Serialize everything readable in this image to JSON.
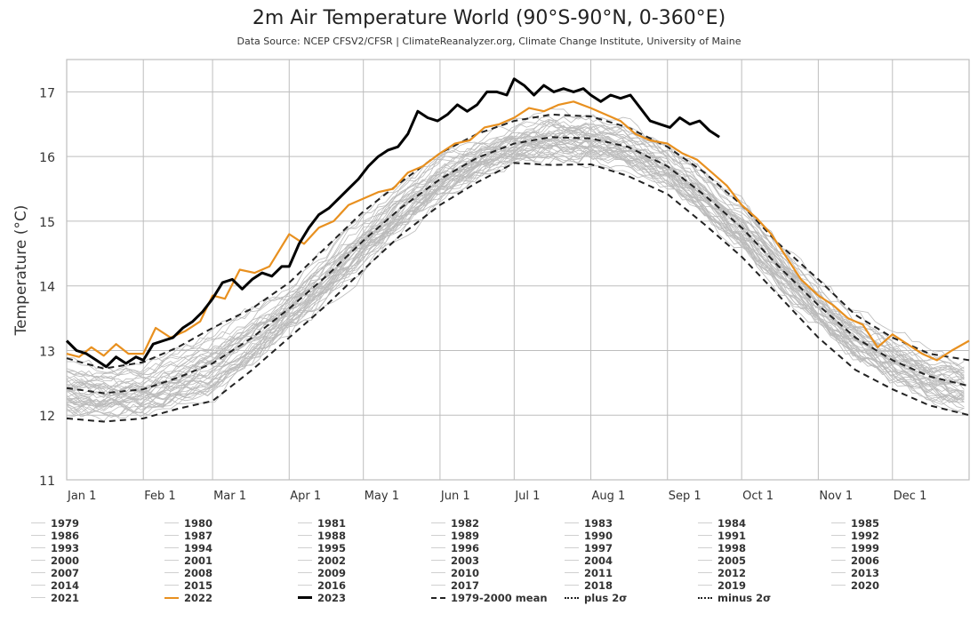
{
  "chart_data": {
    "type": "line",
    "title": "2m Air Temperature World (90°S-90°N, 0-360°E)",
    "subtitle": "Data Source: NCEP CFSV2/CFSR | ClimateReanalyzer.org, Climate Change Institute, University of Maine",
    "xlabel": "",
    "ylabel": "Temperature (°C)",
    "ylim": [
      11,
      17.5
    ],
    "xlim_days": [
      0,
      365
    ],
    "yticks": [
      11,
      12,
      13,
      14,
      15,
      16,
      17
    ],
    "grid": true,
    "legend_position": "bottom",
    "month_ticks": [
      {
        "label": "Jan 1",
        "day": 0
      },
      {
        "label": "Feb 1",
        "day": 31
      },
      {
        "label": "Mar 1",
        "day": 59
      },
      {
        "label": "Apr 1",
        "day": 90
      },
      {
        "label": "May 1",
        "day": 120
      },
      {
        "label": "Jun 1",
        "day": 151
      },
      {
        "label": "Jul 1",
        "day": 181
      },
      {
        "label": "Aug 1",
        "day": 212
      },
      {
        "label": "Sep 1",
        "day": 243
      },
      {
        "label": "Oct 1",
        "day": 273
      },
      {
        "label": "Nov 1",
        "day": 304
      },
      {
        "label": "Dec 1",
        "day": 334
      }
    ],
    "series": [
      {
        "name": "1979-2000 mean",
        "style": "dashed",
        "color": "#222222",
        "x": [
          0,
          15,
          31,
          45,
          59,
          75,
          90,
          105,
          120,
          135,
          151,
          166,
          181,
          196,
          212,
          227,
          243,
          258,
          273,
          288,
          304,
          319,
          334,
          349,
          365
        ],
        "y": [
          12.42,
          12.34,
          12.4,
          12.58,
          12.8,
          13.2,
          13.65,
          14.15,
          14.7,
          15.2,
          15.65,
          15.98,
          16.2,
          16.3,
          16.28,
          16.15,
          15.85,
          15.4,
          14.9,
          14.3,
          13.7,
          13.2,
          12.85,
          12.6,
          12.45
        ]
      },
      {
        "name": "plus 2σ",
        "style": "dashed",
        "color": "#222222",
        "x": [
          0,
          15,
          31,
          45,
          59,
          75,
          90,
          105,
          120,
          135,
          151,
          166,
          181,
          196,
          212,
          227,
          243,
          258,
          273,
          288,
          304,
          319,
          334,
          349,
          365
        ],
        "y": [
          12.88,
          12.72,
          12.82,
          13.05,
          13.35,
          13.65,
          14.05,
          14.6,
          15.15,
          15.6,
          16.05,
          16.35,
          16.55,
          16.65,
          16.62,
          16.45,
          16.15,
          15.75,
          15.25,
          14.65,
          14.1,
          13.55,
          13.2,
          12.95,
          12.85
        ]
      },
      {
        "name": "minus 2σ",
        "style": "dashed",
        "color": "#222222",
        "x": [
          0,
          15,
          31,
          45,
          59,
          75,
          90,
          105,
          120,
          135,
          151,
          166,
          181,
          196,
          212,
          227,
          243,
          258,
          273,
          288,
          304,
          319,
          334,
          349,
          365
        ],
        "y": [
          11.95,
          11.9,
          11.95,
          12.1,
          12.22,
          12.7,
          13.2,
          13.7,
          14.25,
          14.78,
          15.25,
          15.6,
          15.9,
          15.87,
          15.88,
          15.7,
          15.42,
          14.95,
          14.45,
          13.85,
          13.2,
          12.7,
          12.4,
          12.15,
          12.0
        ]
      },
      {
        "name": "2022",
        "style": "solid",
        "color": "#e8901f",
        "x": [
          0,
          5,
          10,
          15,
          20,
          25,
          31,
          36,
          42,
          48,
          54,
          59,
          64,
          70,
          76,
          82,
          90,
          96,
          102,
          108,
          114,
          120,
          126,
          132,
          138,
          144,
          151,
          157,
          163,
          169,
          175,
          181,
          187,
          193,
          199,
          205,
          212,
          218,
          224,
          230,
          236,
          243,
          249,
          255,
          261,
          267,
          273,
          279,
          285,
          291,
          297,
          304,
          310,
          316,
          322,
          328,
          334,
          340,
          346,
          352,
          358,
          365
        ],
        "y": [
          12.95,
          12.9,
          13.05,
          12.92,
          13.1,
          12.95,
          12.95,
          13.35,
          13.2,
          13.3,
          13.45,
          13.85,
          13.8,
          14.25,
          14.2,
          14.3,
          14.8,
          14.65,
          14.9,
          15.0,
          15.25,
          15.35,
          15.45,
          15.5,
          15.75,
          15.85,
          16.05,
          16.2,
          16.25,
          16.45,
          16.5,
          16.6,
          16.75,
          16.7,
          16.8,
          16.85,
          16.75,
          16.65,
          16.55,
          16.35,
          16.25,
          16.2,
          16.05,
          15.95,
          15.75,
          15.55,
          15.25,
          15.05,
          14.8,
          14.45,
          14.1,
          13.85,
          13.7,
          13.5,
          13.4,
          13.05,
          13.25,
          13.1,
          12.95,
          12.85,
          13.0,
          13.15
        ]
      },
      {
        "name": "2023",
        "style": "solid",
        "color": "#000000",
        "x": [
          0,
          4,
          8,
          12,
          16,
          20,
          24,
          28,
          31,
          35,
          39,
          43,
          47,
          51,
          55,
          59,
          63,
          67,
          71,
          75,
          79,
          83,
          87,
          90,
          94,
          98,
          102,
          106,
          110,
          114,
          118,
          122,
          126,
          130,
          134,
          138,
          142,
          146,
          150,
          154,
          158,
          162,
          166,
          170,
          174,
          178,
          181,
          185,
          189,
          193,
          197,
          201,
          205,
          209,
          212,
          216,
          220,
          224,
          228,
          232,
          236,
          240,
          244,
          248,
          252,
          256,
          260,
          264
        ],
        "y": [
          13.15,
          13.0,
          12.95,
          12.85,
          12.75,
          12.9,
          12.8,
          12.9,
          12.85,
          13.1,
          13.15,
          13.2,
          13.35,
          13.45,
          13.6,
          13.8,
          14.05,
          14.1,
          13.95,
          14.1,
          14.2,
          14.15,
          14.3,
          14.3,
          14.65,
          14.9,
          15.1,
          15.2,
          15.35,
          15.5,
          15.65,
          15.85,
          16.0,
          16.1,
          16.15,
          16.35,
          16.7,
          16.6,
          16.55,
          16.65,
          16.8,
          16.7,
          16.8,
          17.0,
          17.0,
          16.95,
          17.2,
          17.1,
          16.95,
          17.1,
          17.0,
          17.05,
          17.0,
          17.05,
          16.95,
          16.85,
          16.95,
          16.9,
          16.95,
          16.75,
          16.55,
          16.5,
          16.45,
          16.6,
          16.5,
          16.55,
          16.4,
          16.3
        ]
      }
    ],
    "background_years": {
      "years": [
        "1979",
        "1980",
        "1981",
        "1982",
        "1983",
        "1984",
        "1985",
        "1986",
        "1987",
        "1988",
        "1989",
        "1990",
        "1991",
        "1992",
        "1993",
        "1994",
        "1995",
        "1996",
        "1997",
        "1998",
        "1999",
        "2000",
        "2001",
        "2002",
        "2003",
        "2004",
        "2005",
        "2006",
        "2007",
        "2008",
        "2009",
        "2010",
        "2011",
        "2012",
        "2013",
        "2014",
        "2015",
        "2016",
        "2017",
        "2018",
        "2019",
        "2020",
        "2021"
      ],
      "color": "#aaaaaa",
      "note": "thin grey lines spread roughly between minus 2σ and plus 2σ around the 1979-2000 mean"
    }
  },
  "legend": [
    [
      "1979",
      "1980",
      "1981",
      "1982",
      "1983",
      "1984",
      "1985"
    ],
    [
      "1986",
      "1987",
      "1988",
      "1989",
      "1990",
      "1991",
      "1992"
    ],
    [
      "1993",
      "1994",
      "1995",
      "1996",
      "1997",
      "1998",
      "1999"
    ],
    [
      "2000",
      "2001",
      "2002",
      "2003",
      "2004",
      "2005",
      "2006"
    ],
    [
      "2007",
      "2008",
      "2009",
      "2010",
      "2011",
      "2012",
      "2013"
    ],
    [
      "2014",
      "2015",
      "2016",
      "2017",
      "2018",
      "2019",
      "2020"
    ],
    [
      "2021",
      "2022",
      "2023",
      "1979-2000 mean",
      "plus 2σ",
      "minus 2σ"
    ]
  ],
  "colors": {
    "year_2022": "#e8901f",
    "year_2023": "#000000",
    "background_year": "#bbbbbb",
    "grid": "#bdbdbd",
    "dashed": "#222222"
  }
}
